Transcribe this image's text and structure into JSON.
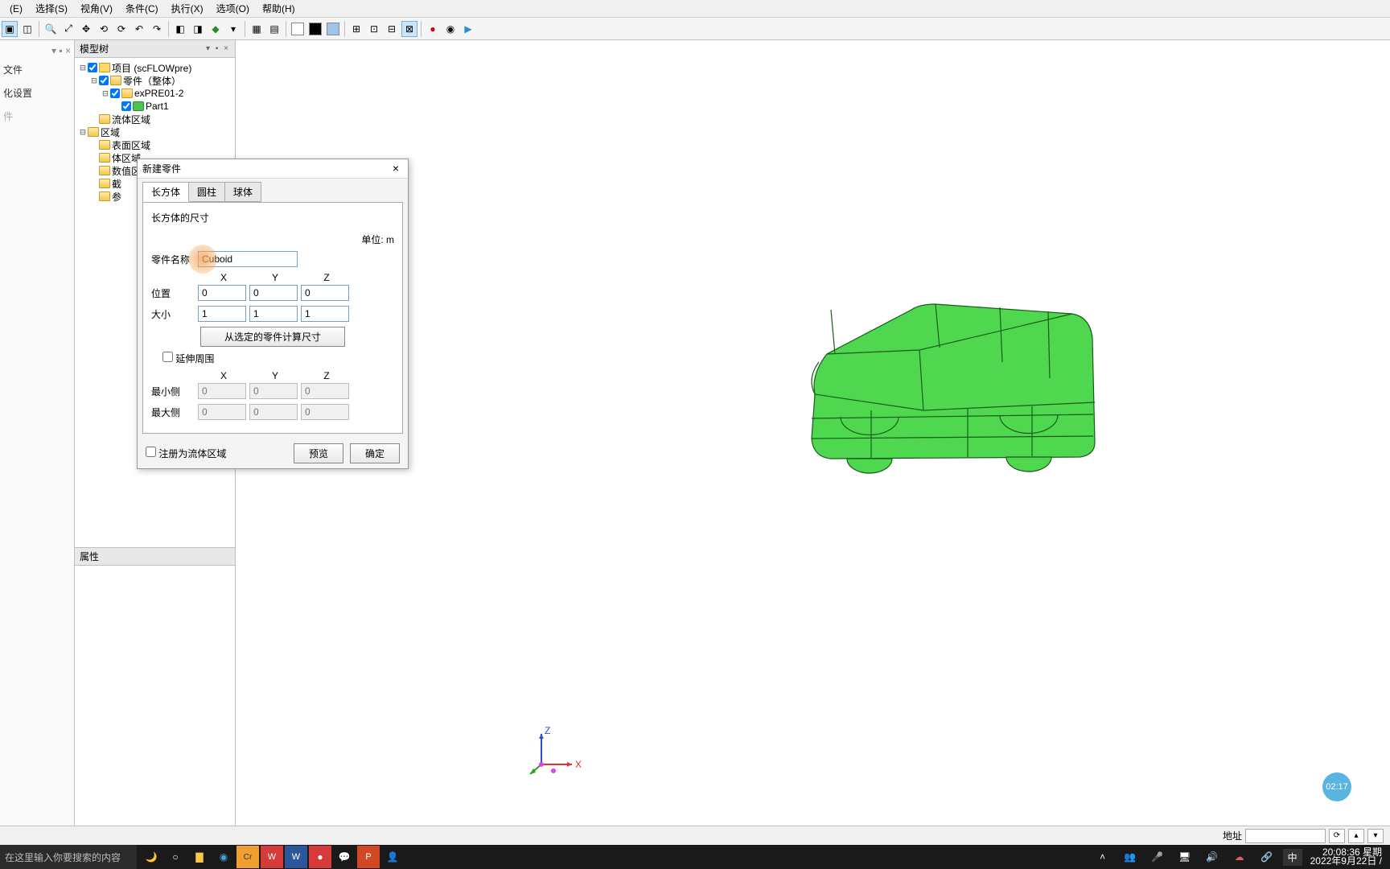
{
  "menu": {
    "items": [
      "(E)",
      "选择(S)",
      "视角(V)",
      "条件(C)",
      "执行(X)",
      "选项(O)",
      "帮助(H)"
    ]
  },
  "left_panel": {
    "items": [
      "文件",
      "化设置",
      "件"
    ],
    "dim_indices": [
      2
    ]
  },
  "tree_panel": {
    "title": "模型树",
    "nodes": [
      {
        "indent": 0,
        "exp": "⊟",
        "chk": true,
        "icon": "proj",
        "label": "项目 (scFLOWpre)"
      },
      {
        "indent": 1,
        "exp": "⊟",
        "chk": true,
        "icon": "folder",
        "label": "零件（整体）"
      },
      {
        "indent": 2,
        "exp": "⊟",
        "chk": true,
        "icon": "folder",
        "label": "exPRE01-2"
      },
      {
        "indent": 3,
        "exp": "",
        "chk": true,
        "icon": "part",
        "label": "Part1"
      },
      {
        "indent": 1,
        "exp": "",
        "chk": null,
        "icon": "folder",
        "label": "流体区域"
      },
      {
        "indent": 0,
        "exp": "⊟",
        "chk": null,
        "icon": "folder",
        "label": "区域"
      },
      {
        "indent": 1,
        "exp": "",
        "chk": null,
        "icon": "folder",
        "label": "表面区域"
      },
      {
        "indent": 1,
        "exp": "",
        "chk": null,
        "icon": "folder",
        "label": "体区域"
      },
      {
        "indent": 1,
        "exp": "",
        "chk": null,
        "icon": "folder",
        "label": "数值区域"
      },
      {
        "indent": 1,
        "exp": "",
        "chk": null,
        "icon": "folder",
        "label": "截"
      },
      {
        "indent": 1,
        "exp": "",
        "chk": null,
        "icon": "folder",
        "label": "参"
      }
    ]
  },
  "props_panel": {
    "title": "属性"
  },
  "dialog": {
    "title": "新建零件",
    "tabs": [
      "长方体",
      "圆柱",
      "球体"
    ],
    "active_tab": 0,
    "section_title": "长方体的尺寸",
    "unit_label": "单位: m",
    "name_label": "零件名称",
    "name_value": "Cuboid",
    "cols": [
      "X",
      "Y",
      "Z"
    ],
    "rows": [
      {
        "label": "位置",
        "vals": [
          "0",
          "0",
          "0"
        ],
        "ro": false
      },
      {
        "label": "大小",
        "vals": [
          "1",
          "1",
          "1"
        ],
        "ro": false
      }
    ],
    "calc_btn": "从选定的零件计算尺寸",
    "extend_chk": "延伸周围",
    "rows2": [
      {
        "label": "最小侧",
        "vals": [
          "0",
          "0",
          "0"
        ],
        "ro": true
      },
      {
        "label": "最大侧",
        "vals": [
          "0",
          "0",
          "0"
        ],
        "ro": true
      }
    ],
    "register_chk": "注册为流体区域",
    "preview_btn": "预览",
    "ok_btn": "确定"
  },
  "viewport": {
    "car_color": "#4fd84f",
    "car_stroke": "#1a6b1a",
    "axis": {
      "x": "X",
      "y": "Y",
      "z": "Z",
      "x_color": "#e03030",
      "y_color": "#20a020",
      "z_color": "#3050d0"
    }
  },
  "statusbar": {
    "loc_label": "地址"
  },
  "badge": "02:17",
  "taskbar": {
    "search_placeholder": "在这里输入你要搜索的内容",
    "clock": {
      "time": "20:08:36 星期",
      "date": "2022年9月22日 /"
    },
    "lang": "中"
  },
  "toolbar_colors": [
    "#ffffff",
    "#000000",
    "#9fc5e8"
  ]
}
